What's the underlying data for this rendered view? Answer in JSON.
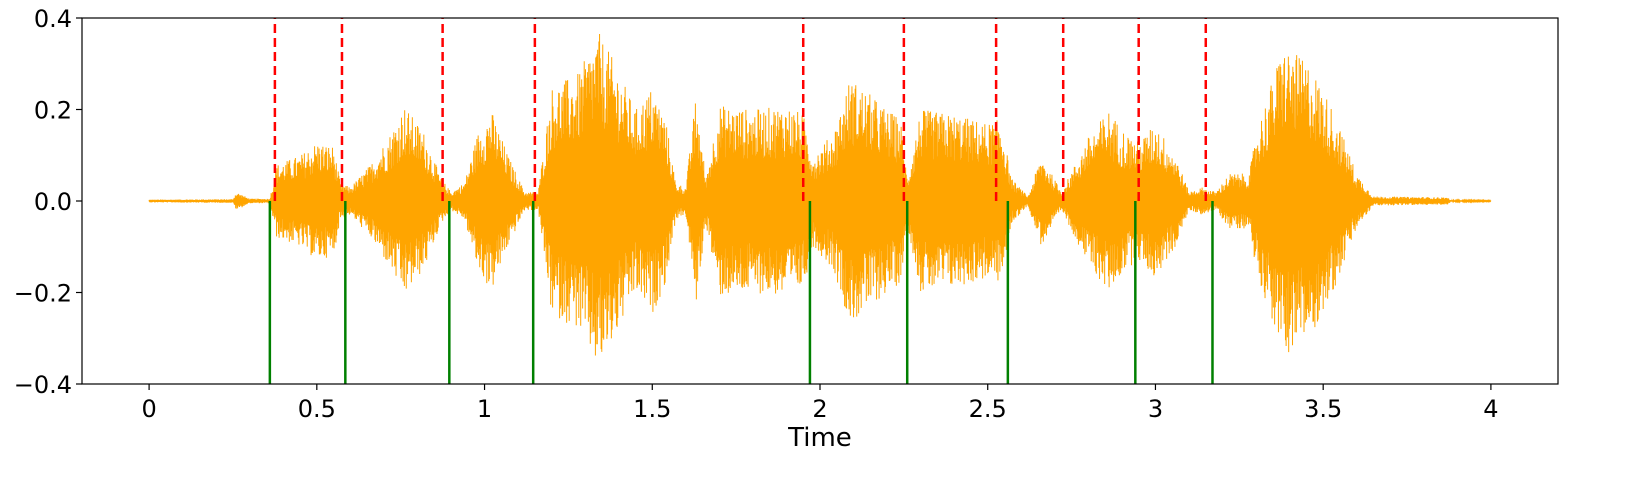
{
  "chart_data": {
    "type": "line",
    "title": "",
    "xlabel": "Time",
    "ylabel": "",
    "xlim": [
      -0.2,
      4.2
    ],
    "ylim": [
      -0.4,
      0.4
    ],
    "x_ticks": [
      {
        "value": 0,
        "label": "0"
      },
      {
        "value": 0.5,
        "label": "0.5"
      },
      {
        "value": 1,
        "label": "1"
      },
      {
        "value": 1.5,
        "label": "1.5"
      },
      {
        "value": 2,
        "label": "2"
      },
      {
        "value": 2.5,
        "label": "2.5"
      },
      {
        "value": 3,
        "label": "3"
      },
      {
        "value": 3.5,
        "label": "3.5"
      },
      {
        "value": 4,
        "label": "4"
      }
    ],
    "y_ticks": [
      {
        "value": 0.4,
        "label": "0.4"
      },
      {
        "value": 0.2,
        "label": "0.2"
      },
      {
        "value": 0.0,
        "label": "0.0"
      },
      {
        "value": -0.2,
        "label": "−0.2"
      },
      {
        "value": -0.4,
        "label": "−0.4"
      }
    ],
    "grid": false,
    "waveform": {
      "color": "#ffa500",
      "x_range": [
        0,
        4
      ],
      "envelope": [
        [
          0.0,
          0.003
        ],
        [
          0.25,
          0.004
        ],
        [
          0.26,
          0.02
        ],
        [
          0.3,
          0.005
        ],
        [
          0.36,
          0.005
        ],
        [
          0.38,
          0.08
        ],
        [
          0.45,
          0.1
        ],
        [
          0.5,
          0.13
        ],
        [
          0.55,
          0.12
        ],
        [
          0.57,
          0.04
        ],
        [
          0.6,
          0.03
        ],
        [
          0.66,
          0.08
        ],
        [
          0.72,
          0.15
        ],
        [
          0.76,
          0.21
        ],
        [
          0.82,
          0.15
        ],
        [
          0.87,
          0.05
        ],
        [
          0.9,
          0.02
        ],
        [
          0.94,
          0.04
        ],
        [
          0.98,
          0.15
        ],
        [
          1.02,
          0.2
        ],
        [
          1.07,
          0.1
        ],
        [
          1.12,
          0.02
        ],
        [
          1.16,
          0.02
        ],
        [
          1.2,
          0.25
        ],
        [
          1.28,
          0.28
        ],
        [
          1.34,
          0.37
        ],
        [
          1.39,
          0.3
        ],
        [
          1.45,
          0.2
        ],
        [
          1.5,
          0.25
        ],
        [
          1.54,
          0.18
        ],
        [
          1.57,
          0.04
        ],
        [
          1.6,
          0.03
        ],
        [
          1.63,
          0.23
        ],
        [
          1.66,
          0.05
        ],
        [
          1.7,
          0.21
        ],
        [
          1.8,
          0.2
        ],
        [
          1.9,
          0.21
        ],
        [
          1.95,
          0.19
        ],
        [
          1.98,
          0.1
        ],
        [
          2.04,
          0.15
        ],
        [
          2.09,
          0.27
        ],
        [
          2.14,
          0.24
        ],
        [
          2.2,
          0.2
        ],
        [
          2.24,
          0.18
        ],
        [
          2.26,
          0.05
        ],
        [
          2.3,
          0.2
        ],
        [
          2.4,
          0.19
        ],
        [
          2.5,
          0.17
        ],
        [
          2.54,
          0.18
        ],
        [
          2.57,
          0.05
        ],
        [
          2.62,
          0.01
        ],
        [
          2.66,
          0.1
        ],
        [
          2.72,
          0.02
        ],
        [
          2.8,
          0.14
        ],
        [
          2.86,
          0.2
        ],
        [
          2.91,
          0.15
        ],
        [
          2.95,
          0.13
        ],
        [
          3.0,
          0.17
        ],
        [
          3.06,
          0.1
        ],
        [
          3.1,
          0.02
        ],
        [
          3.14,
          0.03
        ],
        [
          3.18,
          0.02
        ],
        [
          3.22,
          0.06
        ],
        [
          3.28,
          0.06
        ],
        [
          3.3,
          0.15
        ],
        [
          3.38,
          0.34
        ],
        [
          3.46,
          0.3
        ],
        [
          3.53,
          0.2
        ],
        [
          3.6,
          0.06
        ],
        [
          3.65,
          0.01
        ],
        [
          3.87,
          0.008
        ],
        [
          3.88,
          0.002
        ],
        [
          4.0,
          0.001
        ]
      ]
    },
    "reference_onsets": {
      "color": "#ff0000",
      "style": "dashed",
      "y_range": [
        0,
        0.4
      ],
      "x": [
        0.375,
        0.575,
        0.875,
        1.15,
        1.95,
        2.25,
        2.525,
        2.725,
        2.95,
        3.15
      ]
    },
    "detected_onsets": {
      "color": "#008000",
      "style": "solid",
      "y_range": [
        -0.4,
        0
      ],
      "x": [
        0.36,
        0.585,
        0.895,
        1.145,
        1.97,
        2.26,
        2.56,
        2.94,
        3.17
      ]
    }
  }
}
